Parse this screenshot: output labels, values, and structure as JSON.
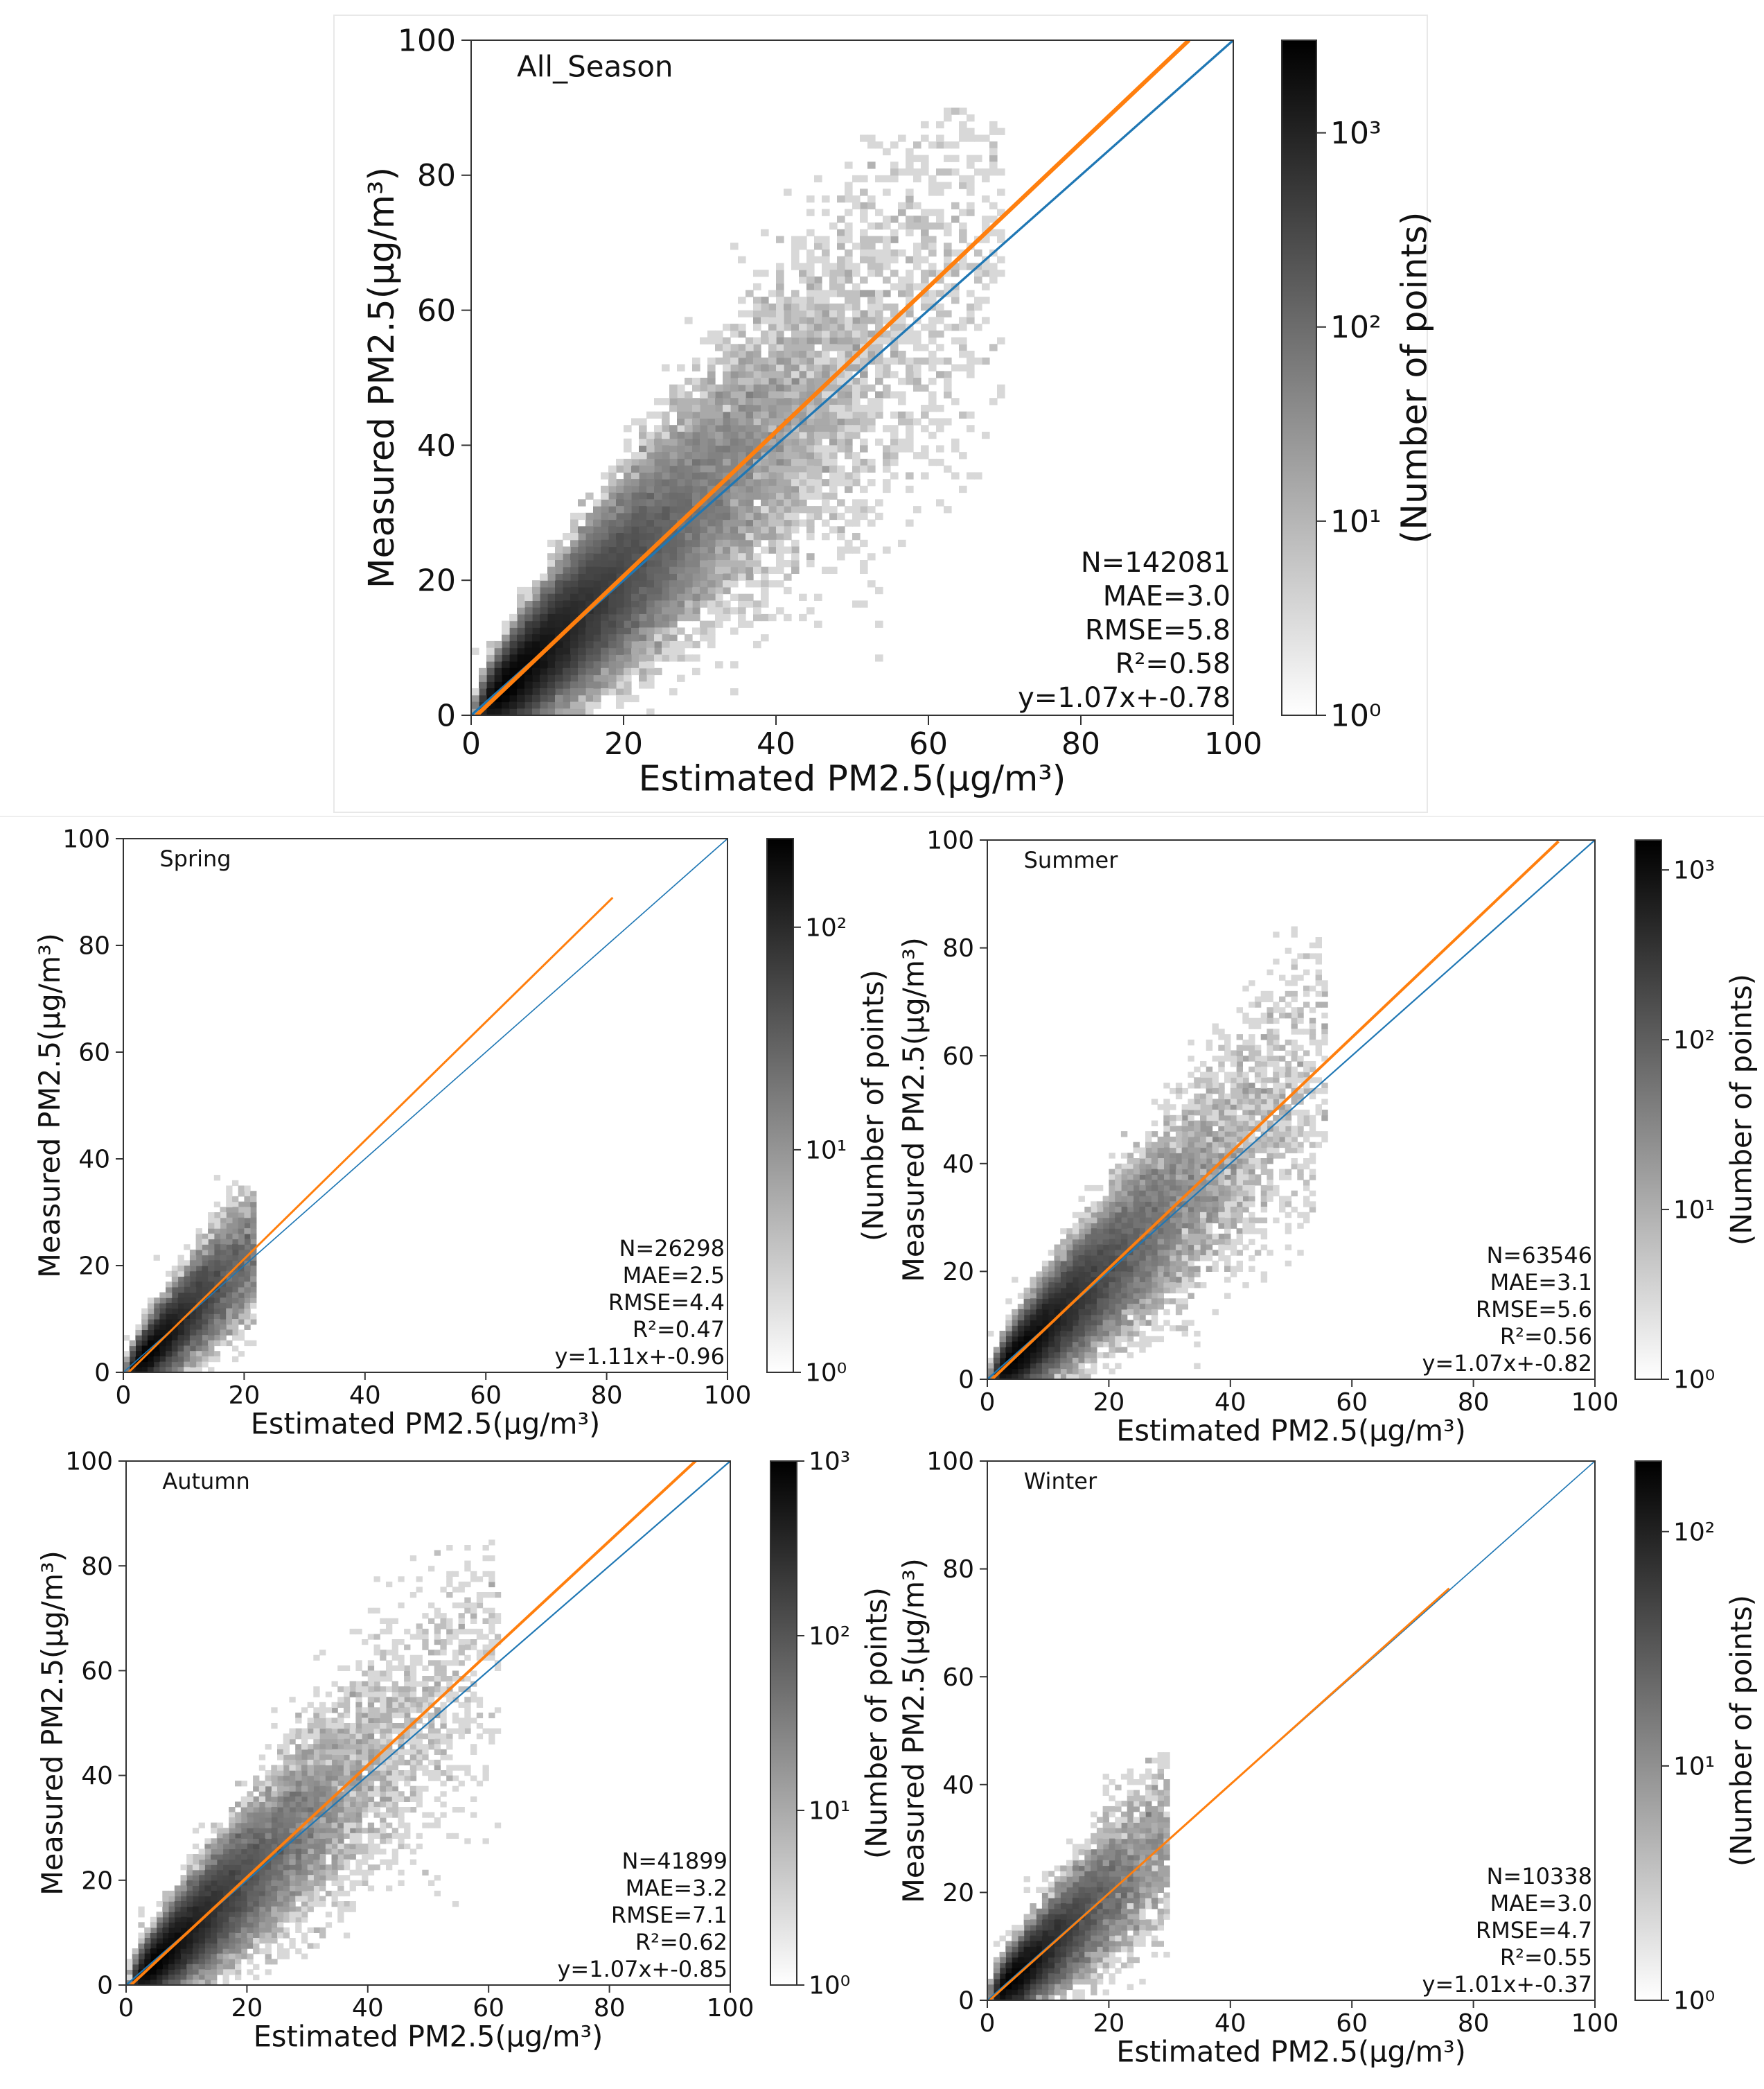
{
  "colors": {
    "background": "#ffffff",
    "identity_line": "#1f77b4",
    "fit_line": "#ff7f0e",
    "axis": "#333333",
    "text": "#111111",
    "cmap_low": "#ffffff",
    "cmap_high": "#000000"
  },
  "chart_data": [
    {
      "id": "all_season",
      "type": "heatmap",
      "subtype": "2d-density-scatter",
      "title": "All_Season",
      "xlabel": "Estimated PM2.5(μg/m³)",
      "ylabel": "Measured PM2.5(μg/m³)",
      "xlim": [
        0,
        100
      ],
      "ylim": [
        0,
        100
      ],
      "xticks": [
        0,
        20,
        40,
        60,
        80,
        100
      ],
      "yticks": [
        0,
        20,
        40,
        60,
        80,
        100
      ],
      "colorbar": {
        "label": "(Number of points)",
        "scale": "log",
        "range": [
          1,
          3000
        ],
        "ticks": [
          1,
          10,
          100,
          1000
        ],
        "tick_labels": [
          "10⁰",
          "10¹",
          "10²",
          "10³"
        ]
      },
      "stats": [
        "N=142081",
        "MAE=3.0",
        "RMSE=5.8",
        "R²=0.58",
        "y=1.07x+-0.78"
      ],
      "fit": {
        "slope": 1.07,
        "intercept": -0.78,
        "x_range": [
          0.73,
          94.2
        ]
      },
      "identity": {
        "x_range": [
          0,
          100
        ]
      },
      "density": {
        "center": [
          10,
          8
        ],
        "spread": 20,
        "max_x": 70,
        "max_y": 90,
        "n": 1500
      }
    },
    {
      "id": "spring",
      "type": "heatmap",
      "subtype": "2d-density-scatter",
      "title": "Spring",
      "xlabel": "Estimated PM2.5(μg/m³)",
      "ylabel": "Measured PM2.5(μg/m³)",
      "xlim": [
        0,
        100
      ],
      "ylim": [
        0,
        100
      ],
      "xticks": [
        0,
        20,
        40,
        60,
        80,
        100
      ],
      "yticks": [
        0,
        20,
        40,
        60,
        80,
        100
      ],
      "colorbar": {
        "label": "(Number of points)",
        "scale": "log",
        "range": [
          1,
          250
        ],
        "ticks": [
          1,
          10,
          100
        ],
        "tick_labels": [
          "10⁰",
          "10¹",
          "10²"
        ]
      },
      "stats": [
        "N=26298",
        "MAE=2.5",
        "RMSE=4.4",
        "R²=0.47",
        "y=1.11x+-0.96"
      ],
      "fit": {
        "slope": 1.11,
        "intercept": -0.96,
        "x_range": [
          0.86,
          81
        ]
      },
      "identity": {
        "x_range": [
          0,
          100
        ]
      },
      "density": {
        "center": [
          8,
          9
        ],
        "spread": 9,
        "max_x": 22,
        "max_y": 37,
        "n": 420
      }
    },
    {
      "id": "summer",
      "type": "heatmap",
      "subtype": "2d-density-scatter",
      "title": "Summer",
      "xlabel": "Estimated PM2.5(μg/m³)",
      "ylabel": "Measured PM2.5(μg/m³)",
      "xlim": [
        0,
        100
      ],
      "ylim": [
        0,
        100
      ],
      "xticks": [
        0,
        20,
        40,
        60,
        80,
        100
      ],
      "yticks": [
        0,
        20,
        40,
        60,
        80,
        100
      ],
      "colorbar": {
        "label": "(Number of points)",
        "scale": "log",
        "range": [
          1,
          1500
        ],
        "ticks": [
          1,
          10,
          100,
          1000
        ],
        "tick_labels": [
          "10⁰",
          "10¹",
          "10²",
          "10³"
        ]
      },
      "stats": [
        "N=63546",
        "MAE=3.1",
        "RMSE=5.6",
        "R²=0.56",
        "y=1.07x+-0.82"
      ],
      "fit": {
        "slope": 1.07,
        "intercept": -0.82,
        "x_range": [
          0.77,
          94
        ]
      },
      "identity": {
        "x_range": [
          0,
          100
        ]
      },
      "density": {
        "center": [
          10,
          9
        ],
        "spread": 16,
        "max_x": 56,
        "max_y": 84,
        "n": 1000
      }
    },
    {
      "id": "autumn",
      "type": "heatmap",
      "subtype": "2d-density-scatter",
      "title": "Autumn",
      "xlabel": "Estimated PM2.5(μg/m³)",
      "ylabel": "Measured PM2.5(μg/m³)",
      "xlim": [
        0,
        100
      ],
      "ylim": [
        0,
        100
      ],
      "xticks": [
        0,
        20,
        40,
        60,
        80,
        100
      ],
      "yticks": [
        0,
        20,
        40,
        60,
        80,
        100
      ],
      "colorbar": {
        "label": "(Number of points)",
        "scale": "log",
        "range": [
          1,
          1000
        ],
        "ticks": [
          1,
          10,
          100,
          1000
        ],
        "tick_labels": [
          "10⁰",
          "10¹",
          "10²",
          "10³"
        ]
      },
      "stats": [
        "N=41899",
        "MAE=3.2",
        "RMSE=7.1",
        "R²=0.62",
        "y=1.07x+-0.85"
      ],
      "fit": {
        "slope": 1.07,
        "intercept": -0.85,
        "x_range": [
          0.8,
          94.3
        ]
      },
      "identity": {
        "x_range": [
          0,
          100
        ]
      },
      "density": {
        "center": [
          10,
          9
        ],
        "spread": 18,
        "max_x": 62,
        "max_y": 85,
        "n": 900
      }
    },
    {
      "id": "winter",
      "type": "heatmap",
      "subtype": "2d-density-scatter",
      "title": "Winter",
      "xlabel": "Estimated PM2.5(μg/m³)",
      "ylabel": "Measured PM2.5(μg/m³)",
      "xlim": [
        0,
        100
      ],
      "ylim": [
        0,
        100
      ],
      "xticks": [
        0,
        20,
        40,
        60,
        80,
        100
      ],
      "yticks": [
        0,
        20,
        40,
        60,
        80,
        100
      ],
      "colorbar": {
        "label": "(Number of points)",
        "scale": "log",
        "range": [
          1,
          200
        ],
        "ticks": [
          1,
          10,
          100
        ],
        "tick_labels": [
          "10⁰",
          "10¹",
          "10²"
        ]
      },
      "stats": [
        "N=10338",
        "MAE=3.0",
        "RMSE=4.7",
        "R²=0.55",
        "y=1.01x+-0.37"
      ],
      "fit": {
        "slope": 1.01,
        "intercept": -0.37,
        "x_range": [
          0.37,
          76
        ]
      },
      "identity": {
        "x_range": [
          0,
          100
        ]
      },
      "density": {
        "center": [
          8,
          7
        ],
        "spread": 10,
        "max_x": 30,
        "max_y": 46,
        "n": 500
      }
    }
  ]
}
